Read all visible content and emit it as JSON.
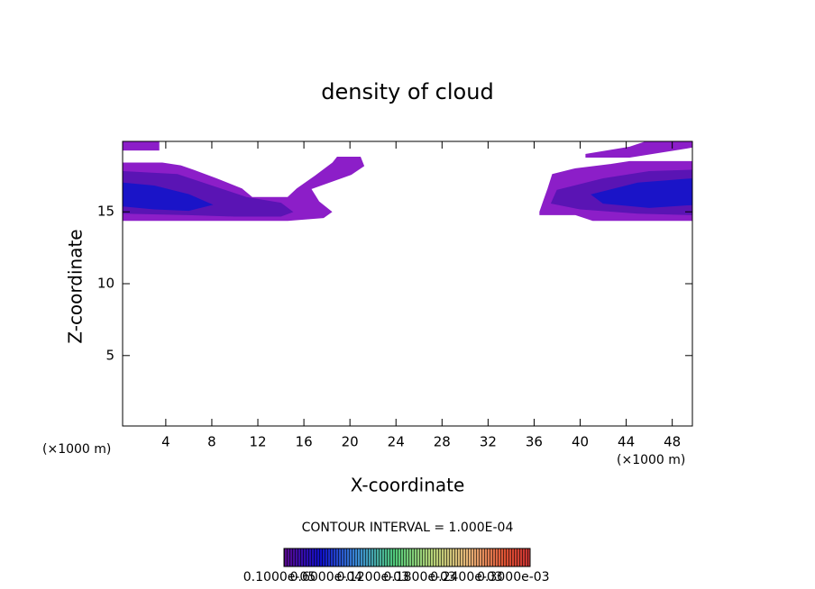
{
  "chart_data": {
    "type": "contour",
    "title": "density of cloud",
    "x_label": "X-coordinate",
    "y_label": "Z-coordinate",
    "x_unit_left": "(×1000 m)",
    "x_unit_right": "(×1000 m)",
    "contour_interval": "CONTOUR INTERVAL = 1.000E-04",
    "xlim": [
      0.25,
      49.75
    ],
    "ylim": [
      0.1,
      19.9
    ],
    "xticks": [
      4,
      8,
      12,
      16,
      20,
      24,
      28,
      32,
      36,
      40,
      44,
      48
    ],
    "yticks": [
      5,
      10,
      15
    ],
    "contours": [
      {
        "color": "#8c1ec8",
        "x": [
          0.3,
          3.7,
          5.3,
          6.4,
          8.4,
          10.6,
          11.5,
          14.6,
          15.4,
          17.0,
          18.5,
          18.9,
          20.9,
          21.2,
          20.1,
          16.6,
          17.3,
          18.4,
          17.7,
          14.6,
          10.7,
          7.6,
          0.3
        ],
        "y": [
          18.4,
          18.4,
          18.2,
          17.9,
          17.3,
          16.6,
          16.0,
          16.0,
          16.6,
          17.5,
          18.4,
          18.8,
          18.8,
          18.2,
          17.6,
          16.6,
          15.7,
          15.0,
          14.6,
          14.4,
          14.4,
          14.4,
          14.4
        ]
      },
      {
        "color": "#8c1ec8",
        "x": [
          0.3,
          3.4,
          3.4,
          0.3
        ],
        "y": [
          19.9,
          19.9,
          19.3,
          19.3
        ]
      },
      {
        "color": "#8c1ec8",
        "x": [
          36.5,
          36.8,
          37.2,
          37.6,
          39.6,
          42.7,
          44.3,
          49.75,
          49.75,
          41.1,
          39.6,
          36.5
        ],
        "y": [
          15.0,
          15.7,
          16.6,
          17.6,
          18.0,
          18.3,
          18.5,
          18.5,
          14.4,
          14.4,
          14.8,
          14.8
        ]
      },
      {
        "color": "#8c1ec8",
        "x": [
          40.5,
          44.3,
          45.8,
          49.75,
          49.75,
          44.3,
          40.5
        ],
        "y": [
          19.0,
          19.5,
          19.9,
          19.9,
          19.5,
          18.8,
          18.8
        ]
      },
      {
        "color": "#5a14b4",
        "x": [
          0.3,
          5,
          8,
          11,
          14,
          15,
          14,
          10,
          6,
          0.3
        ],
        "y": [
          17.8,
          17.6,
          16.8,
          16.0,
          15.6,
          15.0,
          14.7,
          14.7,
          14.8,
          14.9
        ]
      },
      {
        "color": "#5a14b4",
        "x": [
          38,
          42,
          46,
          49.75,
          49.75,
          45,
          40,
          37.5
        ],
        "y": [
          16.5,
          17.3,
          17.8,
          17.9,
          14.8,
          14.9,
          15.2,
          15.6
        ]
      },
      {
        "color": "#1a14c8",
        "x": [
          0.3,
          3,
          6,
          8,
          6,
          3,
          0.3
        ],
        "y": [
          17.0,
          16.8,
          16.2,
          15.5,
          15.1,
          15.2,
          15.4
        ]
      },
      {
        "color": "#1a14c8",
        "x": [
          41,
          45,
          49.75,
          49.75,
          46,
          42
        ],
        "y": [
          16.2,
          17.0,
          17.3,
          15.5,
          15.3,
          15.6
        ]
      }
    ],
    "colorbar_labels": [
      "0.1000e-05",
      "0.6000e-04",
      "0.1200e-03",
      "0.1800e-03",
      "0.2400e-03",
      "0.3000e-03"
    ]
  }
}
